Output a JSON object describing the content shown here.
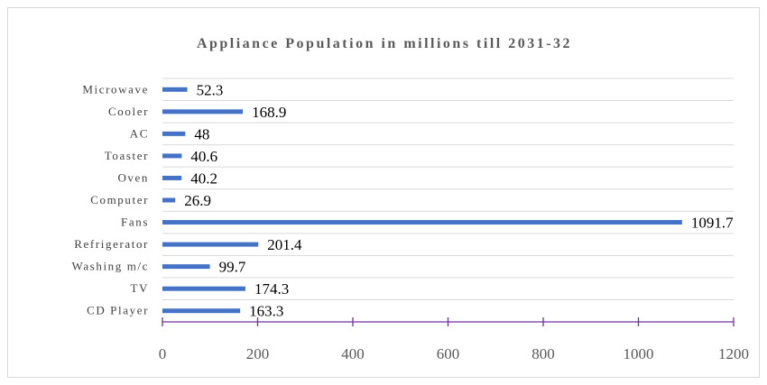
{
  "chart_data": {
    "type": "bar",
    "orientation": "horizontal",
    "title": "Appliance Population in millions till 2031-32",
    "categories": [
      "Microwave",
      "Cooler",
      "AC",
      "Toaster",
      "Oven",
      "Computer",
      "Fans",
      "Refrigerator",
      "Washing m/c",
      "TV",
      "CD Player"
    ],
    "values": [
      52.3,
      168.9,
      48,
      40.6,
      40.2,
      26.9,
      1091.7,
      201.4,
      99.7,
      174.3,
      163.3
    ],
    "value_labels": [
      "52.3",
      "168.9",
      "48",
      "40.6",
      "40.2",
      "26.9",
      "1091.7",
      "201.4",
      "99.7",
      "174.3",
      "163.3"
    ],
    "xlim": [
      0,
      1200
    ],
    "xticks": [
      0,
      200,
      400,
      600,
      800,
      1000,
      1200
    ],
    "xtick_labels": [
      "0",
      "200",
      "400",
      "600",
      "800",
      "1000",
      "1200"
    ],
    "grid": true,
    "bar_color": "#4472c4",
    "axis_color": "#7030a0"
  }
}
